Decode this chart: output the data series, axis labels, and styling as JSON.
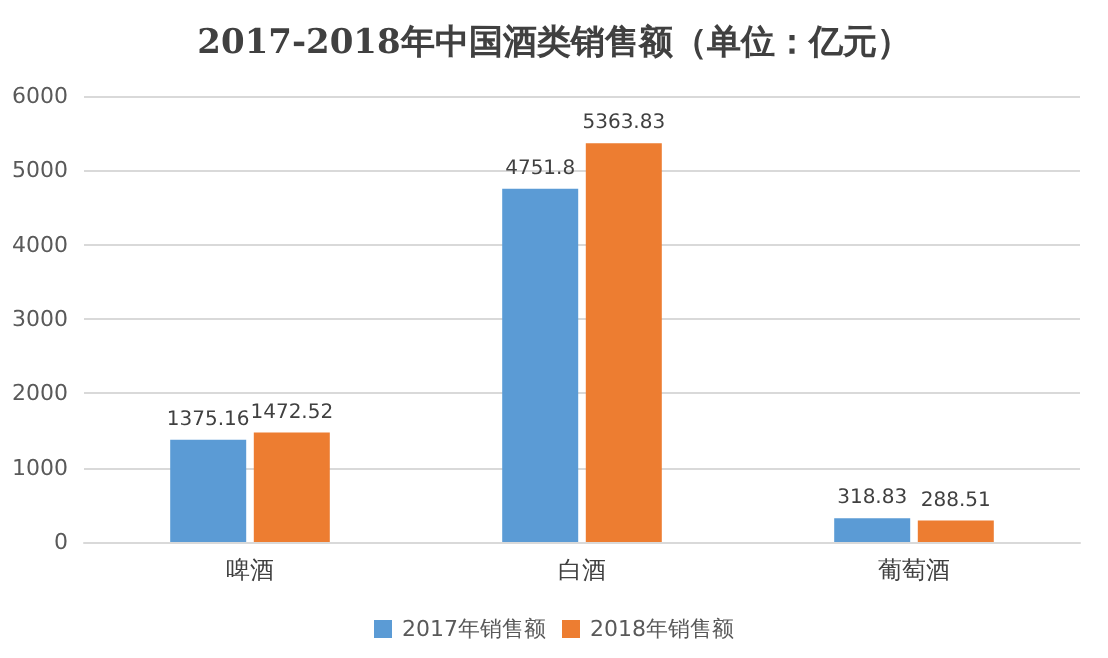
{
  "chart_data": {
    "type": "bar",
    "title": "2017-2018年中国酒类销售额（单位：亿元）",
    "categories": [
      "啤酒",
      "白酒",
      "葡萄酒"
    ],
    "series": [
      {
        "name": "2017年销售额",
        "color": "#5b9bd5",
        "values": [
          1375.16,
          4751.8,
          318.83
        ]
      },
      {
        "name": "2018年销售额",
        "color": "#ed7d31",
        "values": [
          1472.52,
          5363.83,
          288.51
        ]
      }
    ],
    "ylim": [
      0,
      6000
    ],
    "yticks": [
      0,
      1000,
      2000,
      3000,
      4000,
      5000,
      6000
    ],
    "grid": "y",
    "legend": "bottom",
    "data_labels": true
  }
}
